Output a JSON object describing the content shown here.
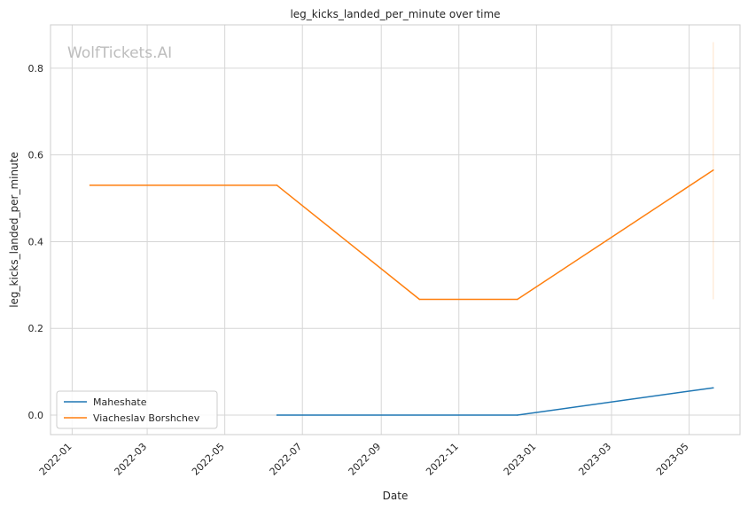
{
  "chart_data": {
    "type": "line",
    "title": "leg_kicks_landed_per_minute over time",
    "xlabel": "Date",
    "ylabel": "leg_kicks_landed_per_minute",
    "watermark": "WolfTickets.AI",
    "x_tick_labels": [
      "2022-01",
      "2022-03",
      "2022-05",
      "2022-07",
      "2022-09",
      "2022-11",
      "2023-01",
      "2023-03",
      "2023-05"
    ],
    "y_tick_labels": [
      "0.0",
      "0.2",
      "0.4",
      "0.6",
      "0.8"
    ],
    "xlim": [
      "2021-12-15",
      "2023-06-10"
    ],
    "ylim": [
      -0.045,
      0.9
    ],
    "grid": true,
    "legend_position": "lower left",
    "series": [
      {
        "name": "Maheshate",
        "color": "#1f77b4",
        "points": [
          {
            "x": "2022-06-11",
            "y": 0.0
          },
          {
            "x": "2022-12-17",
            "y": 0.0
          },
          {
            "x": "2023-05-20",
            "y": 0.063
          }
        ]
      },
      {
        "name": "Viacheslav Borshchev",
        "color": "#ff7f0e",
        "points": [
          {
            "x": "2022-01-15",
            "y": 0.53
          },
          {
            "x": "2022-06-11",
            "y": 0.53
          },
          {
            "x": "2022-10-01",
            "y": 0.267
          },
          {
            "x": "2022-12-17",
            "y": 0.267
          },
          {
            "x": "2023-05-20",
            "y": 0.565
          }
        ],
        "range_band": {
          "x": "2023-05-20",
          "y_low": 0.267,
          "y_high": 0.86
        }
      }
    ]
  }
}
